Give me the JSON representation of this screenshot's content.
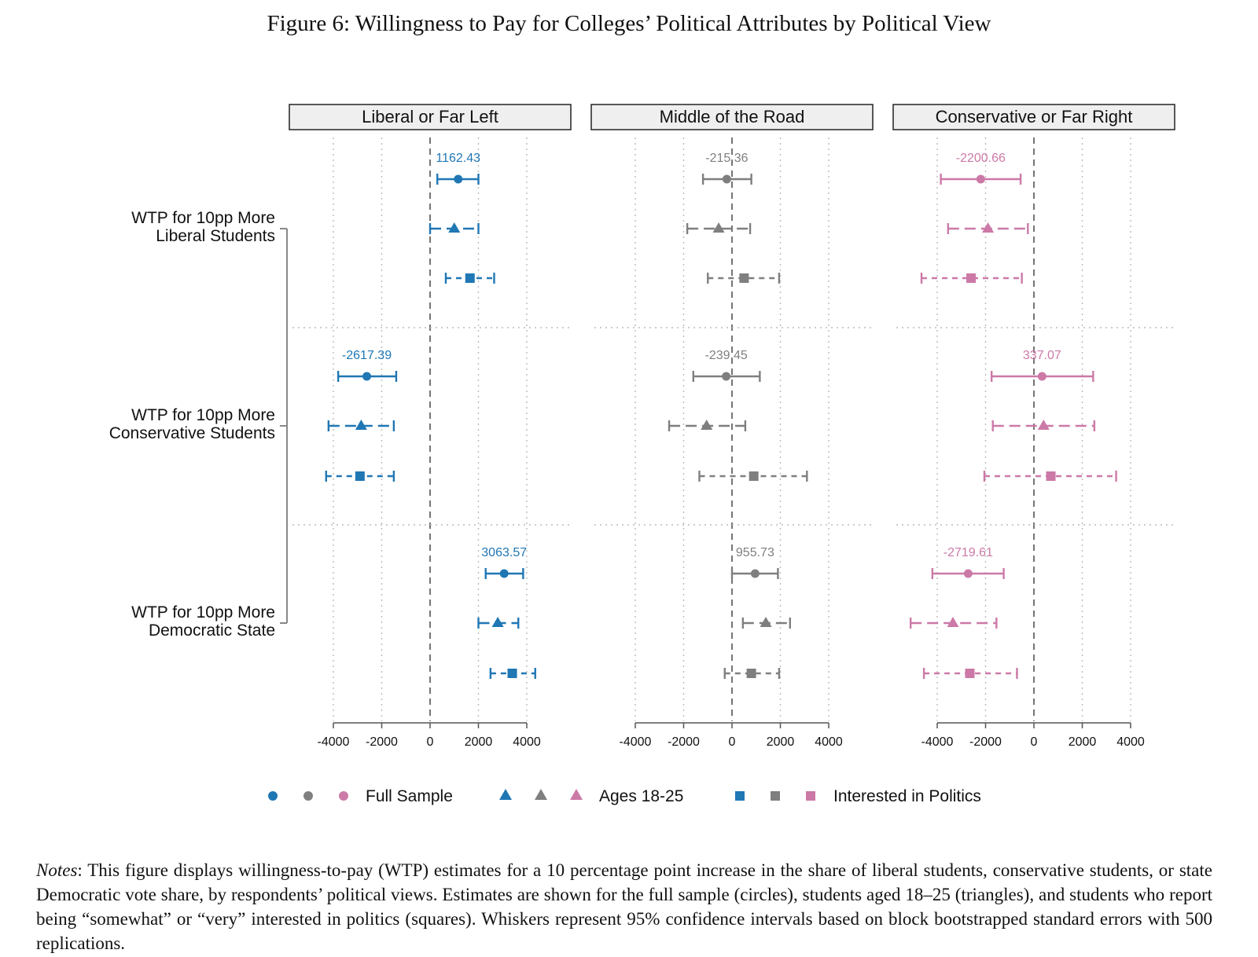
{
  "title": "Figure 6: Willingness to Pay for Colleges’ Political Attributes by Political View",
  "notes": {
    "label": "Notes",
    "text": ": This figure displays willingness-to-pay (WTP) estimates for a 10 percentage point increase in the share of liberal students, conservative students, or state Democratic vote share, by respondents’ political views. Estimates are shown for the full sample (circles), students aged 18–25 (triangles), and students who report being “somewhat” or “very” interested in politics (squares). Whiskers represent 95% confidence intervals based on block bootstrapped standard errors with 500 replications."
  },
  "colors": {
    "liberal": "#1f77b4",
    "middle": "#7f7f7f",
    "conservative": "#cc79a7",
    "axis": "#555555",
    "grid": "#bbbbbb"
  },
  "chart_data": {
    "type": "scatter",
    "subtype": "coefficient plot with 95% confidence intervals",
    "xlim": [
      -4000,
      4000
    ],
    "xticks": [
      -4000,
      -2000,
      0,
      2000,
      4000
    ],
    "xtick_labels": [
      "-4000",
      "-2000",
      "0",
      "2000",
      "4000"
    ],
    "reference_line": 0,
    "groups": [
      {
        "label_lines": [
          "WTP for 10pp More",
          "Liberal Students"
        ]
      },
      {
        "label_lines": [
          "WTP for 10pp More",
          "Conservative Students"
        ]
      },
      {
        "label_lines": [
          "WTP for 10pp More",
          "Democratic State"
        ]
      }
    ],
    "legend": [
      {
        "label": "Full Sample",
        "marker": "circle",
        "line": "solid"
      },
      {
        "label": "Ages 18-25",
        "marker": "triangle",
        "line": "dashed"
      },
      {
        "label": "Interested in Politics",
        "marker": "square",
        "line": "dotted"
      }
    ],
    "panels": [
      {
        "title": "Liberal or Far Left",
        "color_key": "liberal",
        "estimates": [
          [
            {
              "est": 1162.43,
              "lo": 300,
              "hi": 2000,
              "label": "1162.43"
            },
            {
              "est": 1000,
              "lo": 0,
              "hi": 2000
            },
            {
              "est": 1650,
              "lo": 650,
              "hi": 2650
            }
          ],
          [
            {
              "est": -2617.39,
              "lo": -3800,
              "hi": -1400,
              "label": "-2617.39"
            },
            {
              "est": -2850,
              "lo": -4200,
              "hi": -1500
            },
            {
              "est": -2900,
              "lo": -4300,
              "hi": -1500
            }
          ],
          [
            {
              "est": 3063.57,
              "lo": 2300,
              "hi": 3850,
              "label": "3063.57"
            },
            {
              "est": 2800,
              "lo": 2000,
              "hi": 3650
            },
            {
              "est": 3400,
              "lo": 2500,
              "hi": 4350
            }
          ]
        ]
      },
      {
        "title": "Middle of the Road",
        "color_key": "middle",
        "estimates": [
          [
            {
              "est": -215.36,
              "lo": -1200,
              "hi": 800,
              "label": "-215.36"
            },
            {
              "est": -550,
              "lo": -1850,
              "hi": 750
            },
            {
              "est": 500,
              "lo": -1000,
              "hi": 1950
            }
          ],
          [
            {
              "est": -239.45,
              "lo": -1600,
              "hi": 1150,
              "label": "-239.45"
            },
            {
              "est": -1050,
              "lo": -2600,
              "hi": 550
            },
            {
              "est": 900,
              "lo": -1350,
              "hi": 3100
            }
          ],
          [
            {
              "est": 955.73,
              "lo": 0,
              "hi": 1900,
              "label": "955.73"
            },
            {
              "est": 1400,
              "lo": 450,
              "hi": 2400
            },
            {
              "est": 800,
              "lo": -300,
              "hi": 1950
            }
          ]
        ]
      },
      {
        "title": "Conservative or Far Right",
        "color_key": "conservative",
        "estimates": [
          [
            {
              "est": -2200.66,
              "lo": -3850,
              "hi": -550,
              "label": "-2200.66"
            },
            {
              "est": -1900,
              "lo": -3550,
              "hi": -250
            },
            {
              "est": -2600,
              "lo": -4650,
              "hi": -500
            }
          ],
          [
            {
              "est": 337.07,
              "lo": -1750,
              "hi": 2450,
              "label": "337.07"
            },
            {
              "est": 400,
              "lo": -1700,
              "hi": 2500
            },
            {
              "est": 700,
              "lo": -2050,
              "hi": 3400
            }
          ],
          [
            {
              "est": -2719.61,
              "lo": -4200,
              "hi": -1250,
              "label": "-2719.61"
            },
            {
              "est": -3350,
              "lo": -5100,
              "hi": -1550
            },
            {
              "est": -2650,
              "lo": -4550,
              "hi": -700
            }
          ]
        ]
      }
    ]
  }
}
